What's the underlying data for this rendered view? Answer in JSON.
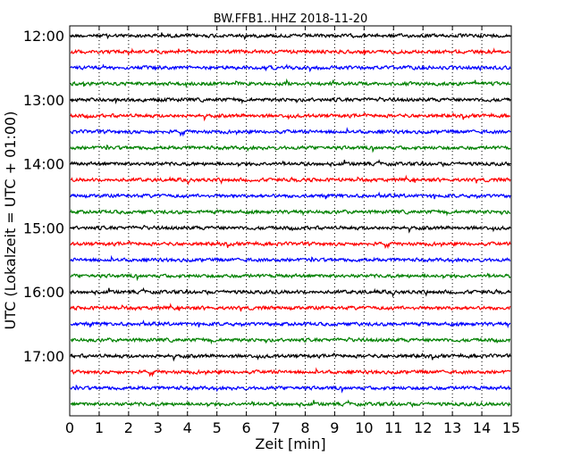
{
  "chart_data": {
    "type": "line",
    "title": "BW.FFB1..HHZ 2018-11-20",
    "xlabel": "Zeit  [min]",
    "ylabel": "UTC (Lokalzeit = UTC + 01:00)",
    "xlim": [
      0,
      15
    ],
    "x_ticks": [
      "0",
      "1",
      "2",
      "3",
      "4",
      "5",
      "6",
      "7",
      "8",
      "9",
      "10",
      "11",
      "12",
      "13",
      "14",
      "15"
    ],
    "y_ticks": [
      "12:00",
      "13:00",
      "14:00",
      "15:00",
      "16:00",
      "17:00"
    ],
    "traces_per_hour": 4,
    "trace_start_times": [
      "12:00",
      "12:15",
      "12:30",
      "12:45",
      "13:00",
      "13:15",
      "13:30",
      "13:45",
      "14:00",
      "14:15",
      "14:30",
      "14:45",
      "15:00",
      "15:15",
      "15:30",
      "15:45",
      "16:00",
      "16:15",
      "16:30",
      "16:45",
      "17:00",
      "17:15",
      "17:30",
      "17:45"
    ],
    "trace_colors": [
      "#000000",
      "#ff0000",
      "#0000ff",
      "#008000"
    ],
    "grid": "vertical dotted",
    "series_note_amplitude": 1
  }
}
